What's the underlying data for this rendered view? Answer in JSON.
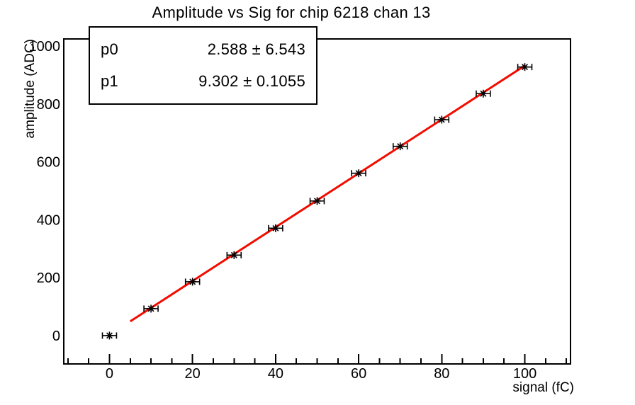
{
  "title": "Amplitude vs Sig for chip 6218 chan 13",
  "stats": {
    "rows": [
      {
        "name": "p0",
        "value": "2.588 ± 6.543"
      },
      {
        "name": "p1",
        "value": "9.302 ± 0.1055"
      }
    ]
  },
  "chart_data": {
    "type": "scatter",
    "title": "Amplitude vs Sig for chip 6218 chan 13",
    "xlabel": "signal (fC)",
    "ylabel": "amplitude (ADC)",
    "x": [
      0,
      10,
      20,
      30,
      40,
      50,
      60,
      70,
      80,
      90,
      100
    ],
    "y": [
      0,
      93,
      186,
      278,
      371,
      465,
      561,
      654,
      746,
      836,
      928
    ],
    "xerr": 1.7,
    "xlim": [
      -11,
      111
    ],
    "ylim": [
      -98,
      1025
    ],
    "xticks": [
      0,
      20,
      40,
      60,
      80,
      100
    ],
    "yticks": [
      0,
      200,
      400,
      600,
      800,
      1000
    ],
    "minor_step_x": 5,
    "minor_step_y": 50,
    "grid": false,
    "legend": "none",
    "marker": "asterisk",
    "marker_color": "#000000",
    "axis_color": "#000000",
    "fit": {
      "type": "linear",
      "p0": 2.588,
      "p1": 9.302,
      "range": [
        5,
        100
      ],
      "color": "#f20c00"
    }
  }
}
